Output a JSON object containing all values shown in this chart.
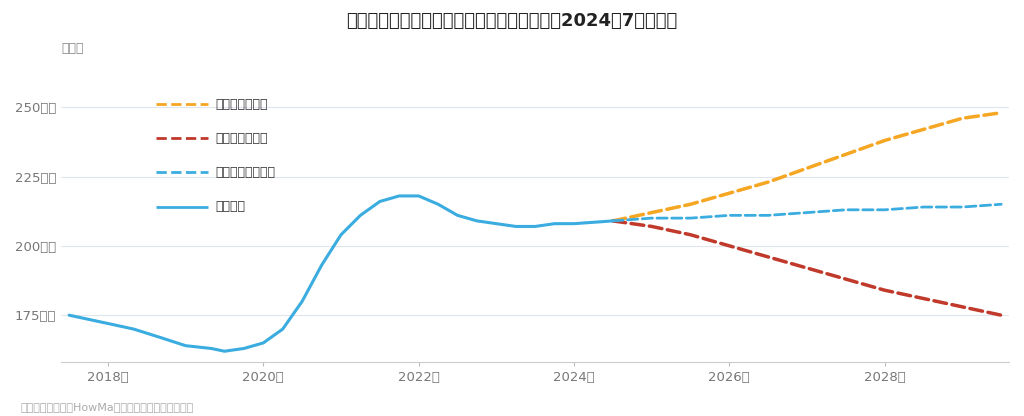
{
  "title": "名古屋駅周辺の中古マンションの価格動向（2024年7月時点）",
  "ylabel": "坪単価",
  "footnote": "売出し事例を元にHowMa運営元のコラビットが集計",
  "background_color": "#ffffff",
  "plot_bg_color": "#ffffff",
  "grid_color": "#e0e6ee",
  "yticks": [
    175,
    200,
    225,
    250
  ],
  "ylim": [
    158,
    265
  ],
  "xlim": [
    2017.4,
    2029.6
  ],
  "xticks": [
    2018,
    2020,
    2022,
    2024,
    2026,
    2028
  ],
  "history": {
    "x": [
      2017.5,
      2018.0,
      2018.33,
      2018.67,
      2019.0,
      2019.33,
      2019.5,
      2019.75,
      2020.0,
      2020.25,
      2020.5,
      2020.75,
      2021.0,
      2021.25,
      2021.5,
      2021.75,
      2022.0,
      2022.25,
      2022.5,
      2022.75,
      2023.0,
      2023.25,
      2023.5,
      2023.75,
      2024.0,
      2024.5
    ],
    "y": [
      175,
      172,
      170,
      167,
      164,
      163,
      162,
      163,
      165,
      170,
      180,
      193,
      204,
      211,
      216,
      218,
      218,
      215,
      211,
      209,
      208,
      207,
      207,
      208,
      208,
      209
    ],
    "color": "#3aace0",
    "linewidth": 2.2,
    "label": "過去推移"
  },
  "good": {
    "x": [
      2024.5,
      2025.0,
      2025.5,
      2026.0,
      2026.5,
      2027.0,
      2027.5,
      2028.0,
      2028.5,
      2029.0,
      2029.5
    ],
    "y": [
      209,
      212,
      215,
      219,
      223,
      228,
      233,
      238,
      242,
      246,
      248
    ],
    "color": "#f5a623",
    "linewidth": 2.5,
    "linestyle": "--",
    "label": "グッドシナリオ"
  },
  "bad": {
    "x": [
      2024.5,
      2025.0,
      2025.5,
      2026.0,
      2026.5,
      2027.0,
      2027.5,
      2028.0,
      2028.5,
      2029.0,
      2029.5
    ],
    "y": [
      209,
      207,
      204,
      200,
      196,
      192,
      188,
      184,
      181,
      178,
      175
    ],
    "color": "#c0392b",
    "linewidth": 2.5,
    "linestyle": "--",
    "label": "バッドシナリオ"
  },
  "normal": {
    "x": [
      2024.5,
      2025.0,
      2025.5,
      2026.0,
      2026.5,
      2027.0,
      2027.5,
      2028.0,
      2028.5,
      2029.0,
      2029.5
    ],
    "y": [
      209,
      210,
      210,
      211,
      211,
      212,
      213,
      213,
      214,
      214,
      215
    ],
    "color": "#3aace0",
    "linewidth": 2.0,
    "linestyle": "--",
    "label": "ノーマルシナリオ"
  },
  "legend_items": [
    {
      "label": "グッドシナリオ",
      "color": "#f5a623",
      "ls": "--"
    },
    {
      "label": "バッドシナリオ",
      "color": "#c0392b",
      "ls": "--"
    },
    {
      "label": "ノーマルシナリオ",
      "color": "#3aace0",
      "ls": "--"
    },
    {
      "label": "過去推移",
      "color": "#3aace0",
      "ls": "-"
    }
  ]
}
